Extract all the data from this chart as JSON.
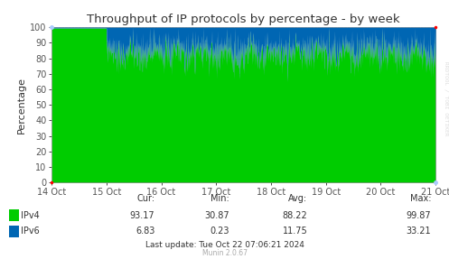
{
  "title": "Throughput of IP protocols by percentage - by week",
  "ylabel": "Percentage",
  "ipv4_color": "#00cc00",
  "ipv6_color": "#0066b3",
  "bg_color": "#ffffff",
  "grid_color": "#cccccc",
  "ylim": [
    0,
    100
  ],
  "yticks": [
    0,
    10,
    20,
    30,
    40,
    50,
    60,
    70,
    80,
    90,
    100
  ],
  "x_labels": [
    "14 Oct",
    "15 Oct",
    "16 Oct",
    "17 Oct",
    "18 Oct",
    "19 Oct",
    "20 Oct",
    "21 Oct"
  ],
  "legend_ipv4": "IPv4",
  "legend_ipv6": "IPv6",
  "cur_ipv4": "93.17",
  "cur_ipv6": "6.83",
  "min_ipv4": "30.87",
  "min_ipv6": "0.23",
  "avg_ipv4": "88.22",
  "avg_ipv6": "11.75",
  "max_ipv4": "99.87",
  "max_ipv6": "33.21",
  "last_update": "Last update: Tue Oct 22 07:06:21 2024",
  "munin_version": "Munin 2.0.67",
  "watermark": "RRDTOOL / TOBI OETIKER",
  "corner_dot_color": "#ff0000",
  "corner_dot_color2": "#aaccff"
}
